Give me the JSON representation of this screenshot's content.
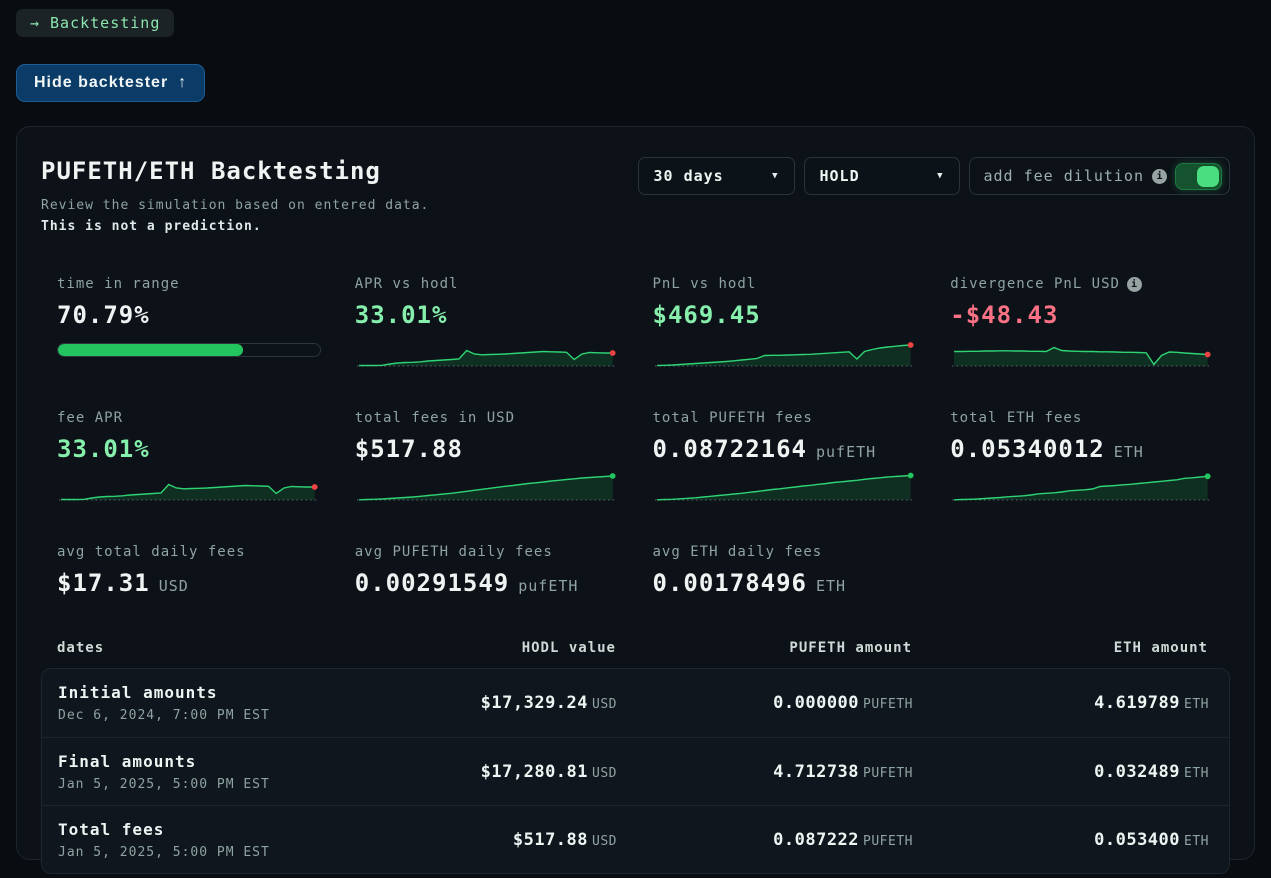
{
  "toolbar": {
    "back_badge": {
      "arrow": "→",
      "label": "Backtesting"
    },
    "hide_button": {
      "label": "Hide backtester",
      "arrow": "↑"
    }
  },
  "panel": {
    "title": "PUFETH/ETH Backtesting",
    "subtitle": "Review the simulation based on entered data.",
    "warning": "This is not a prediction.",
    "controls": {
      "period": {
        "value": "30 days"
      },
      "strategy": {
        "value": "HOLD"
      },
      "fee_dilution": {
        "label": "add fee dilution",
        "enabled": true
      }
    }
  },
  "stats": [
    {
      "label": "time in range",
      "value": "70.79%",
      "progress": 70.79
    },
    {
      "label": "APR vs hodl",
      "value": "33.01%"
    },
    {
      "label": "PnL vs hodl",
      "value": "$469.45"
    },
    {
      "label": "divergence PnL USD",
      "value": "-$48.43",
      "has_info": true
    },
    {
      "label": "fee APR",
      "value": "33.01%"
    },
    {
      "label": "total fees in USD",
      "value": "$517.88"
    },
    {
      "label": "total PUFETH fees",
      "value": "0.08722164",
      "unit": "pufETH"
    },
    {
      "label": "total ETH fees",
      "value": "0.05340012",
      "unit": "ETH"
    },
    {
      "label": "avg total daily fees",
      "value": "$17.31",
      "unit": "USD"
    },
    {
      "label": "avg PUFETH daily fees",
      "value": "0.00291549",
      "unit": "pufETH"
    },
    {
      "label": "avg ETH daily fees",
      "value": "0.00178496",
      "unit": "ETH"
    }
  ],
  "table": {
    "headers": [
      "dates",
      "HODL value",
      "PUFETH amount",
      "ETH amount"
    ],
    "rows": [
      {
        "title": "Initial amounts",
        "date": "Dec 6, 2024, 7:00 PM EST",
        "hodl": "$17,329.24",
        "hodl_unit": "USD",
        "pufeth": "0.000000",
        "pufeth_unit": "PUFETH",
        "eth": "4.619789",
        "eth_unit": "ETH"
      },
      {
        "title": "Final amounts",
        "date": "Jan 5, 2025, 5:00 PM EST",
        "hodl": "$17,280.81",
        "hodl_unit": "USD",
        "pufeth": "4.712738",
        "pufeth_unit": "PUFETH",
        "eth": "0.032489",
        "eth_unit": "ETH"
      },
      {
        "title": "Total fees",
        "date": "Jan 5, 2025, 5:00 PM EST",
        "hodl": "$517.88",
        "hodl_unit": "USD",
        "pufeth": "0.087222",
        "pufeth_unit": "PUFETH",
        "eth": "0.053400",
        "eth_unit": "ETH"
      }
    ]
  },
  "colors": {
    "accent_green": "#22c55e",
    "spark_line": "#2fd374",
    "spark_fill": "rgba(34,197,94,0.16)",
    "mint": "#86efac",
    "pink": "#fb7185",
    "dot_red": "#ef4444",
    "dot_green": "#22c55e",
    "toggle_on": "#4ade80",
    "button_blue": "#0b3c68"
  },
  "chart_data": [
    {
      "id": "apr_vs_hodl",
      "type": "area",
      "label": "APR vs hodl sparkline",
      "dot": "red",
      "points": [
        2,
        2,
        2,
        3,
        8,
        12,
        14,
        15,
        17,
        20,
        22,
        24,
        26,
        28,
        62,
        48,
        45,
        46,
        47,
        48,
        50,
        52,
        54,
        56,
        58,
        57,
        56,
        55,
        26,
        48,
        54,
        53,
        52,
        52
      ]
    },
    {
      "id": "pnl_vs_hodl",
      "type": "area",
      "label": "PnL vs hodl sparkline",
      "dot": "red",
      "points": [
        2,
        3,
        4,
        6,
        8,
        10,
        12,
        14,
        16,
        18,
        21,
        24,
        27,
        30,
        42,
        43,
        43,
        44,
        45,
        46,
        47,
        49,
        51,
        53,
        55,
        57,
        28,
        58,
        66,
        72,
        76,
        79,
        82,
        84
      ]
    },
    {
      "id": "divergence_pnl",
      "type": "area",
      "label": "divergence PnL sparkline",
      "dot": "red",
      "points": [
        58,
        58,
        59,
        59,
        60,
        60,
        61,
        61,
        60,
        60,
        59,
        59,
        58,
        74,
        62,
        60,
        59,
        58,
        58,
        57,
        57,
        56,
        55,
        55,
        54,
        53,
        6,
        42,
        56,
        55,
        52,
        50,
        48,
        46
      ]
    },
    {
      "id": "fee_apr",
      "type": "area",
      "label": "fee APR sparkline",
      "dot": "red",
      "points": [
        2,
        2,
        2,
        3,
        8,
        12,
        14,
        15,
        17,
        20,
        22,
        24,
        26,
        28,
        62,
        48,
        45,
        46,
        47,
        48,
        50,
        52,
        54,
        56,
        58,
        57,
        56,
        55,
        26,
        48,
        54,
        53,
        52,
        52
      ]
    },
    {
      "id": "total_fees_usd",
      "type": "area",
      "label": "total fees USD sparkline",
      "dot": "green",
      "points": [
        1,
        2,
        3,
        4,
        6,
        8,
        10,
        12,
        15,
        18,
        21,
        24,
        27,
        31,
        35,
        39,
        43,
        47,
        51,
        55,
        58,
        62,
        66,
        69,
        72,
        76,
        79,
        82,
        85,
        88,
        90,
        92,
        94,
        96
      ]
    },
    {
      "id": "total_pufeth_fees",
      "type": "area",
      "label": "total PUFETH fees sparkline",
      "dot": "green",
      "points": [
        1,
        2,
        3,
        5,
        7,
        9,
        12,
        15,
        18,
        21,
        24,
        27,
        31,
        34,
        38,
        42,
        45,
        49,
        52,
        56,
        59,
        63,
        66,
        70,
        73,
        76,
        79,
        83,
        86,
        89,
        92,
        94,
        96,
        98
      ]
    },
    {
      "id": "total_eth_fees",
      "type": "area",
      "label": "total ETH fees sparkline",
      "dot": "green",
      "points": [
        1,
        2,
        3,
        4,
        6,
        8,
        10,
        13,
        15,
        17,
        20,
        25,
        27,
        29,
        32,
        37,
        39,
        41,
        44,
        54,
        56,
        58,
        61,
        63,
        66,
        69,
        72,
        75,
        78,
        81,
        87,
        89,
        92,
        95
      ]
    }
  ]
}
